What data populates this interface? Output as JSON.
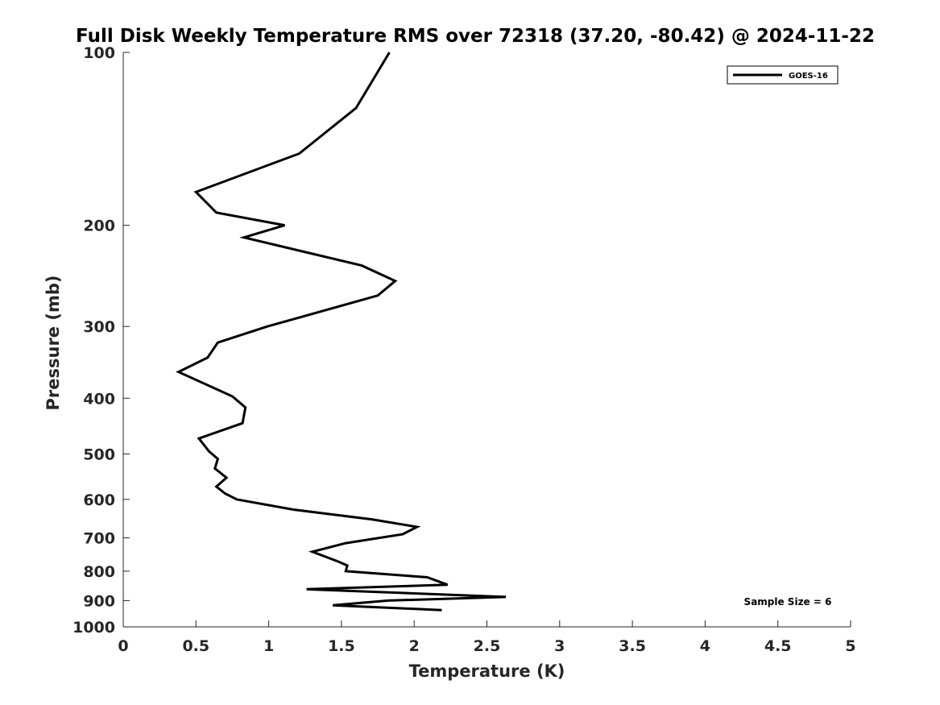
{
  "chart_data": {
    "type": "line",
    "title": "Full Disk Weekly Temperature RMS over 72318 (37.20, -80.42) @ 2024-11-22",
    "xlabel": "Temperature (K)",
    "ylabel": "Pressure (mb)",
    "xlim": [
      0,
      5
    ],
    "ylim": [
      100,
      1000
    ],
    "y_scale": "log",
    "y_reversed": true,
    "grid": false,
    "legend_position": "top-right",
    "x_ticks": [
      0,
      0.5,
      1,
      1.5,
      2,
      2.5,
      3,
      3.5,
      4,
      4.5,
      5
    ],
    "x_tick_labels": [
      "0",
      "0.5",
      "1",
      "1.5",
      "2",
      "2.5",
      "3",
      "3.5",
      "4",
      "4.5",
      "5"
    ],
    "y_ticks": [
      100,
      200,
      300,
      400,
      500,
      600,
      700,
      800,
      900,
      1000
    ],
    "y_tick_labels": [
      "100",
      "200",
      "300",
      "400",
      "500",
      "600",
      "700",
      "800",
      "900",
      "1000"
    ],
    "series": [
      {
        "name": "GOES-16",
        "color": "#000000",
        "points": [
          [
            1.83,
            100
          ],
          [
            1.6,
            125
          ],
          [
            1.21,
            150
          ],
          [
            0.5,
            175
          ],
          [
            0.64,
            190
          ],
          [
            1.11,
            200
          ],
          [
            0.83,
            210
          ],
          [
            1.64,
            235
          ],
          [
            1.87,
            250
          ],
          [
            1.75,
            265
          ],
          [
            0.99,
            300
          ],
          [
            0.65,
            320
          ],
          [
            0.58,
            340
          ],
          [
            0.38,
            360
          ],
          [
            0.75,
            397
          ],
          [
            0.84,
            415
          ],
          [
            0.82,
            442
          ],
          [
            0.52,
            470
          ],
          [
            0.59,
            495
          ],
          [
            0.65,
            510
          ],
          [
            0.63,
            530
          ],
          [
            0.71,
            550
          ],
          [
            0.64,
            570
          ],
          [
            0.7,
            586
          ],
          [
            0.78,
            600
          ],
          [
            1.17,
            625
          ],
          [
            1.71,
            650
          ],
          [
            2.02,
            670
          ],
          [
            1.92,
            690
          ],
          [
            1.53,
            715
          ],
          [
            1.3,
            740
          ],
          [
            1.48,
            770
          ],
          [
            1.54,
            782
          ],
          [
            1.53,
            800
          ],
          [
            2.09,
            820
          ],
          [
            2.23,
            845
          ],
          [
            1.26,
            860
          ],
          [
            2.63,
            887
          ],
          [
            1.82,
            900
          ],
          [
            1.44,
            917
          ],
          [
            2.19,
            935
          ]
        ]
      }
    ],
    "annotations": [
      {
        "text": "Sample Size = 6",
        "position": "bottom-right"
      }
    ]
  }
}
